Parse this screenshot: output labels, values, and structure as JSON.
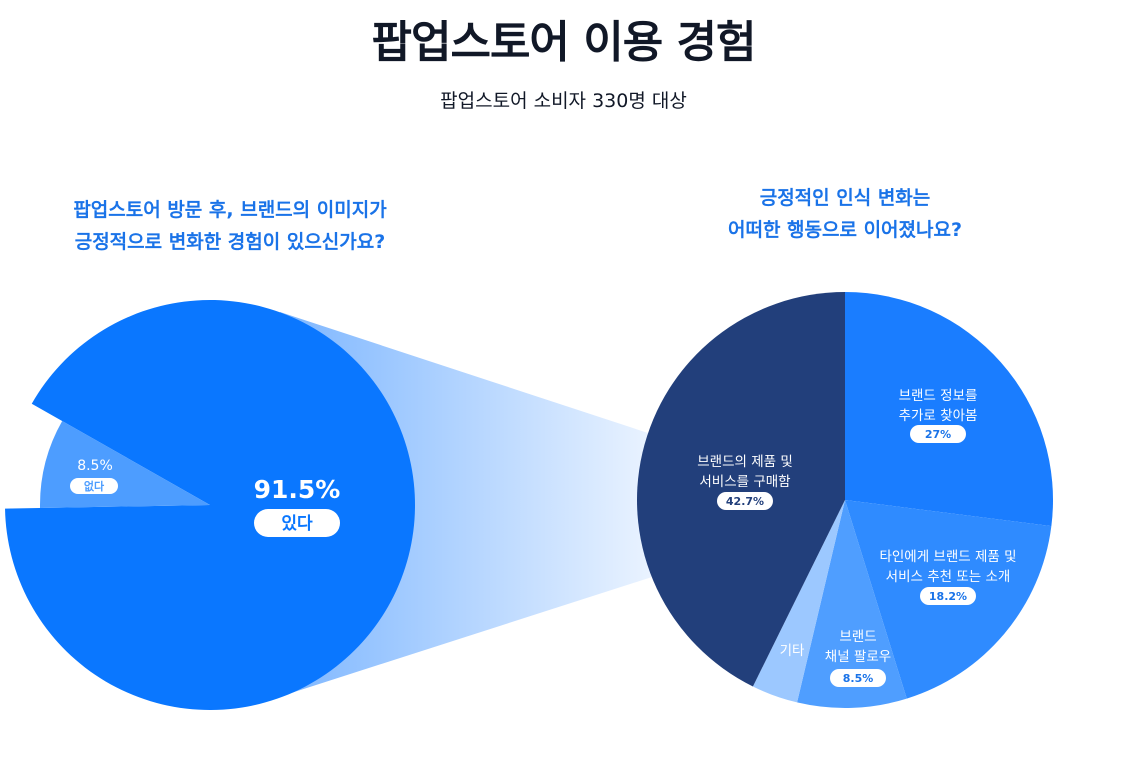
{
  "header": {
    "title": "팝업스토어 이용 경험",
    "subtitle": "팝업스토어 소비자 330명 대상"
  },
  "chart_data": [
    {
      "type": "pie",
      "title": "팝업스토어 방문 후, 브랜드의 이미지가 긍정적으로 변화한 경험이 있으신가요?",
      "title_lines": [
        "팝업스토어 방문 후, 브랜드의 이미지가",
        "긍정적으로 변화한 경험이 있으신가요?"
      ],
      "slices": [
        {
          "label": "있다",
          "value": 91.5,
          "value_label": "91.5%",
          "color": "#0a77ff"
        },
        {
          "label": "없다",
          "value": 8.5,
          "value_label": "8.5%",
          "color": "#4d9dff"
        }
      ]
    },
    {
      "type": "pie",
      "title": "긍정적인 인식 변화는 어떠한 행동으로 이어졌나요?",
      "title_lines": [
        "긍정적인 인식 변화는",
        "어떠한 행동으로 이어졌나요?"
      ],
      "slices": [
        {
          "label_lines": [
            "브랜드 정보를",
            "추가로 찾아봄"
          ],
          "value": 27,
          "value_label": "27%",
          "color": "#1a7dff"
        },
        {
          "label_lines": [
            "타인에게 브랜드 제품 및",
            "서비스 추천 또는 소개"
          ],
          "value": 18.2,
          "value_label": "18.2%",
          "color": "#2f8bff"
        },
        {
          "label_lines": [
            "브랜드",
            "채널 팔로우"
          ],
          "value": 8.5,
          "value_label": "8.5%",
          "color": "#4f9eff"
        },
        {
          "label_lines": [
            "기타"
          ],
          "value": 3.6,
          "color": "#9cc8ff"
        },
        {
          "label_lines": [
            "브랜드의 제품 및",
            "서비스를 구매함"
          ],
          "value": 42.7,
          "value_label": "42.7%",
          "color": "#223f7b"
        }
      ]
    }
  ]
}
